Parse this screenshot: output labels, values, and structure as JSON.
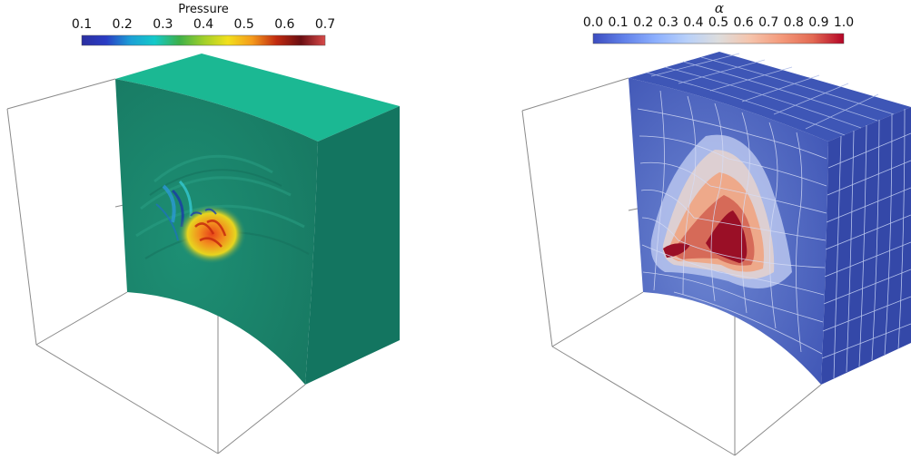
{
  "left_panel": {
    "colorbar": {
      "title": "Pressure",
      "ticks": [
        "0.1",
        "0.2",
        "0.3",
        "0.4",
        "0.5",
        "0.6",
        "0.7"
      ],
      "colormap": [
        "#2b2fa0",
        "#2a3cc4",
        "#1c9fd6",
        "#14c9c9",
        "#3db04a",
        "#9fcf2a",
        "#f2e01c",
        "#f59a1c",
        "#c02a10",
        "#6a0e12",
        "#d84a4a"
      ]
    },
    "volume_colors": {
      "front": "#1f8a72",
      "top": "#1bb893",
      "side": "#137560"
    }
  },
  "right_panel": {
    "colorbar": {
      "title": "α",
      "ticks": [
        "0.0",
        "0.1",
        "0.2",
        "0.3",
        "0.4",
        "0.5",
        "0.6",
        "0.7",
        "0.8",
        "0.9",
        "1.0"
      ],
      "colormap": [
        "#3b4cc0",
        "#6282ea",
        "#8db0fe",
        "#b8d0f9",
        "#dddddd",
        "#f5c4ac",
        "#f49a7b",
        "#e36a53",
        "#b40426"
      ]
    },
    "volume_colors": {
      "front": "#4e68c2",
      "top": "#3e56b6",
      "side": "#3448a8",
      "grid": "#c9d3f2"
    }
  }
}
